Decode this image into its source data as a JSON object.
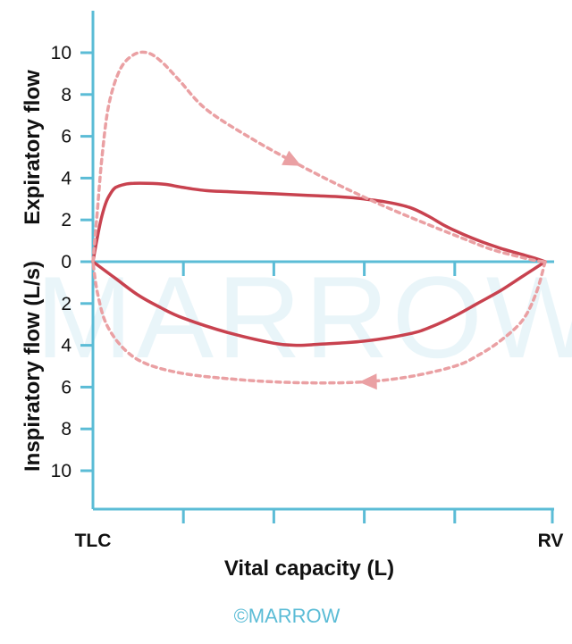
{
  "colors": {
    "axis": "#5bbcd6",
    "loop": "#c8424f",
    "dashed": "#eaa0a3",
    "text": "#111111",
    "watermark": "#cfe9f3"
  },
  "watermark_text": "MARROW",
  "credit_text": "©MARROW",
  "chart_data": {
    "type": "line",
    "title": "",
    "xlabel": "Vital capacity (L)",
    "ylabel_expiratory": "Expiratory flow",
    "ylabel_inspiratory": "Inspiratory flow (L/s)",
    "x_end_labels": [
      "TLC",
      "RV"
    ],
    "xlim": [
      0,
      1
    ],
    "ylim": [
      -12,
      12
    ],
    "y_ticks_positive": [
      10,
      8,
      6,
      4,
      2,
      0
    ],
    "y_ticks_negative": [
      2,
      4,
      6,
      8,
      10
    ],
    "series": [
      {
        "style": "solid",
        "x": [
          0,
          0.01,
          0.02,
          0.03,
          0.04,
          0.05,
          0.07,
          0.09,
          0.12,
          0.16,
          0.2,
          0.25,
          0.3,
          0.35,
          0.4,
          0.45,
          0.5,
          0.55,
          0.6,
          0.65,
          0.7,
          0.74,
          0.78,
          0.82,
          0.86,
          0.9,
          0.94,
          0.98,
          1.0
        ],
        "y": [
          0,
          1.2,
          2.2,
          2.9,
          3.3,
          3.55,
          3.7,
          3.75,
          3.75,
          3.7,
          3.55,
          3.4,
          3.35,
          3.3,
          3.25,
          3.2,
          3.15,
          3.1,
          3.0,
          2.85,
          2.6,
          2.2,
          1.7,
          1.3,
          0.95,
          0.65,
          0.4,
          0.15,
          0
        ],
        "y_side": [
          "exp",
          "exp",
          "exp",
          "exp",
          "exp",
          "exp",
          "exp",
          "exp",
          "exp",
          "exp",
          "exp",
          "exp",
          "exp",
          "exp",
          "exp",
          "exp",
          "exp",
          "exp",
          "exp",
          "exp",
          "exp",
          "exp",
          "exp",
          "exp",
          "exp",
          "exp",
          "exp",
          "exp",
          "exp"
        ]
      },
      {
        "style": "solid",
        "x": [
          1.0,
          0.95,
          0.9,
          0.85,
          0.8,
          0.75,
          0.7,
          0.6,
          0.5,
          0.45,
          0.4,
          0.3,
          0.2,
          0.15,
          0.1,
          0.05,
          0.0
        ],
        "y": [
          0,
          0.7,
          1.4,
          2.0,
          2.6,
          3.1,
          3.45,
          3.8,
          3.95,
          4.0,
          3.9,
          3.4,
          2.7,
          2.2,
          1.6,
          0.8,
          0
        ],
        "y_side": [
          "insp",
          "insp",
          "insp",
          "insp",
          "insp",
          "insp",
          "insp",
          "insp",
          "insp",
          "insp",
          "insp",
          "insp",
          "insp",
          "insp",
          "insp",
          "insp",
          "insp"
        ]
      },
      {
        "style": "dashed",
        "x": [
          0,
          0.01,
          0.02,
          0.035,
          0.06,
          0.09,
          0.12,
          0.15,
          0.19,
          0.25,
          0.35,
          0.45,
          0.55,
          0.65,
          0.75,
          0.82,
          0.88,
          0.94,
          0.98,
          1.0
        ],
        "y": [
          0,
          2.5,
          5.0,
          7.5,
          9.2,
          9.9,
          10.0,
          9.6,
          8.7,
          7.3,
          5.9,
          4.7,
          3.6,
          2.6,
          1.7,
          1.1,
          0.6,
          0.25,
          0.05,
          0
        ],
        "y_side": [
          "exp",
          "exp",
          "exp",
          "exp",
          "exp",
          "exp",
          "exp",
          "exp",
          "exp",
          "exp",
          "exp",
          "exp",
          "exp",
          "exp",
          "exp",
          "exp",
          "exp",
          "exp",
          "exp",
          "exp"
        ]
      },
      {
        "style": "dashed",
        "x": [
          1.0,
          0.98,
          0.95,
          0.9,
          0.85,
          0.8,
          0.7,
          0.6,
          0.5,
          0.4,
          0.3,
          0.2,
          0.12,
          0.07,
          0.03,
          0.01,
          0.0
        ],
        "y": [
          0,
          1.5,
          2.8,
          3.8,
          4.5,
          5.0,
          5.5,
          5.75,
          5.8,
          5.75,
          5.6,
          5.35,
          4.9,
          4.2,
          3.0,
          1.5,
          0
        ],
        "y_side": [
          "insp",
          "insp",
          "insp",
          "insp",
          "insp",
          "insp",
          "insp",
          "insp",
          "insp",
          "insp",
          "insp",
          "insp",
          "insp",
          "insp",
          "insp",
          "insp",
          "insp"
        ]
      }
    ],
    "arrows": [
      {
        "on_series": 2,
        "at_x": 0.45,
        "direction": "forward"
      },
      {
        "on_series": 3,
        "at_x": 0.55,
        "direction": "forward"
      }
    ],
    "grid": false,
    "legend": "none"
  }
}
